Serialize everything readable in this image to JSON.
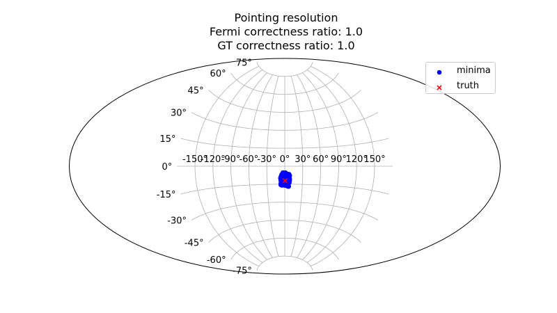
{
  "chart_data": {
    "type": "scatter",
    "projection": "aitoff",
    "title": "Pointing resolution",
    "subtitle_lines": [
      "Fermi correctness ratio: 1.0",
      "GT correctness ratio: 1.0"
    ],
    "xlabel": "",
    "ylabel": "",
    "grid": true,
    "legend_placement": "top-right",
    "x_ticks": [
      "-150°",
      "-120°",
      "-90°",
      "-60°",
      "-30°",
      "0°",
      "30°",
      "60°",
      "90°",
      "120°",
      "150°"
    ],
    "x_tick_values": [
      -150,
      -120,
      -90,
      -60,
      -30,
      0,
      30,
      60,
      90,
      120,
      150
    ],
    "y_ticks": [
      "-75°",
      "-60°",
      "-45°",
      "-30°",
      "-15°",
      "0°",
      "15°",
      "30°",
      "45°",
      "60°",
      "75°"
    ],
    "y_tick_values": [
      -75,
      -60,
      -45,
      -30,
      -15,
      0,
      15,
      30,
      45,
      60,
      75
    ],
    "series": [
      {
        "name": "minima",
        "color": "#0000ff",
        "marker": "circle",
        "points": [
          [
            -3,
            -5.5
          ],
          [
            1,
            -5.5
          ],
          [
            4,
            -6.5
          ],
          [
            -5,
            -7
          ],
          [
            -1,
            -7.5
          ],
          [
            3,
            -7.8
          ],
          [
            7,
            -6.8
          ],
          [
            8,
            -7.8
          ],
          [
            -6,
            -8.5
          ],
          [
            -3.5,
            -8.7
          ],
          [
            0,
            -8.8
          ],
          [
            2.5,
            -8.8
          ],
          [
            5,
            -9
          ],
          [
            7.5,
            -9
          ],
          [
            -7,
            -10
          ],
          [
            -5,
            -10.2
          ],
          [
            -2,
            -10.3
          ],
          [
            1.5,
            -10.5
          ],
          [
            4,
            -10.4
          ],
          [
            6,
            -10.4
          ],
          [
            8,
            -10.5
          ],
          [
            -6.5,
            -11.5
          ],
          [
            -4,
            -11.6
          ],
          [
            -1,
            -11.6
          ],
          [
            2,
            -11.8
          ],
          [
            4.5,
            -11.9
          ],
          [
            8,
            -11.7
          ],
          [
            -6,
            -13
          ],
          [
            -3,
            -13
          ],
          [
            0.5,
            -13.2
          ],
          [
            3,
            -13.2
          ],
          [
            5,
            -13.4
          ],
          [
            7.5,
            -13.5
          ],
          [
            -6.5,
            -14.5
          ],
          [
            -4.5,
            -14.6
          ],
          [
            -2,
            -14.6
          ],
          [
            1,
            -14.8
          ],
          [
            2.5,
            -14.6
          ],
          [
            4,
            -14.8
          ],
          [
            6,
            -14.7
          ],
          [
            -6.5,
            -15.5
          ],
          [
            -5,
            -15.8
          ],
          [
            -3,
            -15.7
          ],
          [
            -1.5,
            -15.8
          ],
          [
            1,
            -16
          ],
          [
            3,
            -16
          ],
          [
            5,
            -16.6
          ],
          [
            6.5,
            -16.8
          ],
          [
            -2,
            -9.5
          ],
          [
            0,
            -12
          ],
          [
            2,
            -13.8
          ],
          [
            -5.5,
            -12.2
          ],
          [
            6.5,
            -12.5
          ],
          [
            -1,
            -14
          ],
          [
            3.5,
            -9.8
          ]
        ]
      },
      {
        "name": "truth",
        "color": "#ff0000",
        "marker": "x",
        "points": [
          [
            0.5,
            -12
          ]
        ]
      }
    ]
  }
}
